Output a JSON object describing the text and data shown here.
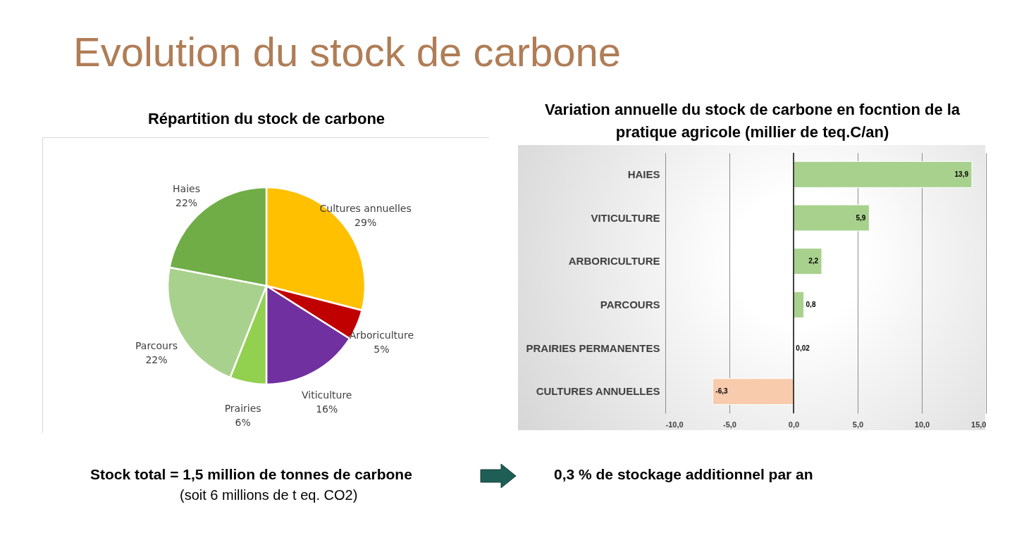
{
  "chart_data": [
    {
      "type": "other",
      "title": "Evolution du stock de carbone",
      "annotations": [
        "Stock total = 1,5 million de tonnes de carbone",
        "(soit 6 millions de t eq. CO2)",
        "0,3 % de stockage additionnel par an"
      ]
    },
    {
      "type": "pie",
      "title": "Répartition du stock de carbone",
      "categories": [
        "Cultures annuelles",
        "Arboriculture",
        "Viticulture",
        "Prairies",
        "Parcours",
        "Haies"
      ],
      "values": [
        29,
        5,
        16,
        6,
        22,
        22
      ],
      "colors": [
        "#ffc000",
        "#c00000",
        "#7030a0",
        "#92d050",
        "#a9d18e",
        "#70ad47"
      ],
      "value_labels": [
        "29%",
        "5%",
        "16%",
        "6%",
        "22%",
        "22%"
      ]
    },
    {
      "type": "bar",
      "orientation": "horizontal",
      "title": "Variation annuelle du stock de carbone en focntion de la pratique agricole (millier de teq.C/an)",
      "categories": [
        "HAIES",
        "VITICULTURE",
        "ARBORICULTURE",
        "PARCOURS",
        "PRAIRIES PERMANENTES",
        "CULTURES ANNUELLES"
      ],
      "values": [
        13.9,
        5.9,
        2.2,
        0.8,
        0.02,
        -6.3
      ],
      "colors": [
        "#a9d18e",
        "#a9d18e",
        "#a9d18e",
        "#a9d18e",
        "#a9d18e",
        "#f8cbad"
      ],
      "value_labels": [
        "13,9",
        "5,9",
        "2,2",
        "0,8",
        "0,02",
        "-6,3"
      ],
      "xlim": [
        -10,
        15
      ],
      "xticks": [
        {
          "value": -10,
          "label": "-10,0"
        },
        {
          "value": -5,
          "label": "-5,0"
        },
        {
          "value": 0,
          "label": "0,0"
        },
        {
          "value": 5,
          "label": "5,0"
        },
        {
          "value": 10,
          "label": "10,0"
        },
        {
          "value": 15,
          "label": "15,0"
        }
      ],
      "grid": "x"
    }
  ]
}
